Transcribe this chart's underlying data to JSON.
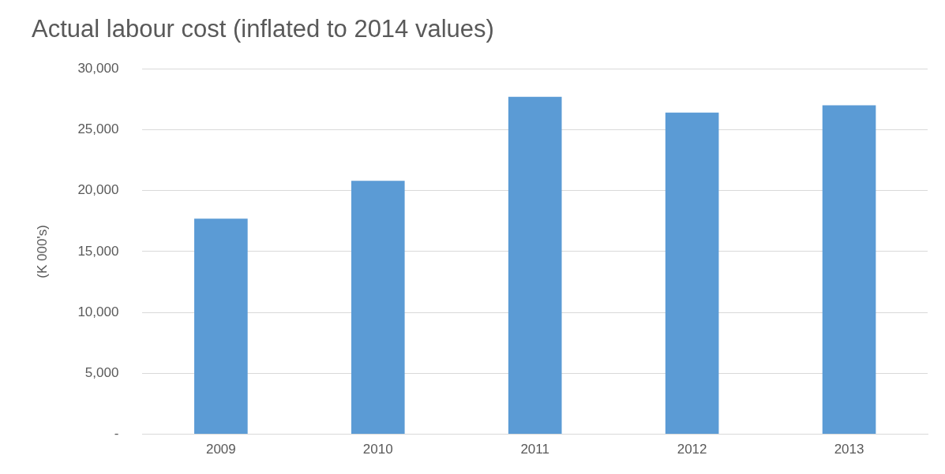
{
  "chart_data": {
    "type": "bar",
    "title": "Actual labour cost (inflated to 2014 values)",
    "ylabel": "(K 000's)",
    "categories": [
      "2009",
      "2010",
      "2011",
      "2012",
      "2013"
    ],
    "values": [
      17700,
      20800,
      27700,
      26400,
      27000
    ],
    "color": "#5b9bd5",
    "ylim": [
      0,
      30000
    ],
    "yticks": [
      {
        "value": 0,
        "label": "-"
      },
      {
        "value": 5000,
        "label": "5,000"
      },
      {
        "value": 10000,
        "label": "10,000"
      },
      {
        "value": 15000,
        "label": "15,000"
      },
      {
        "value": 20000,
        "label": "20,000"
      },
      {
        "value": 25000,
        "label": "25,000"
      },
      {
        "value": 30000,
        "label": "30,000"
      }
    ],
    "grid": "y",
    "legend": false
  }
}
